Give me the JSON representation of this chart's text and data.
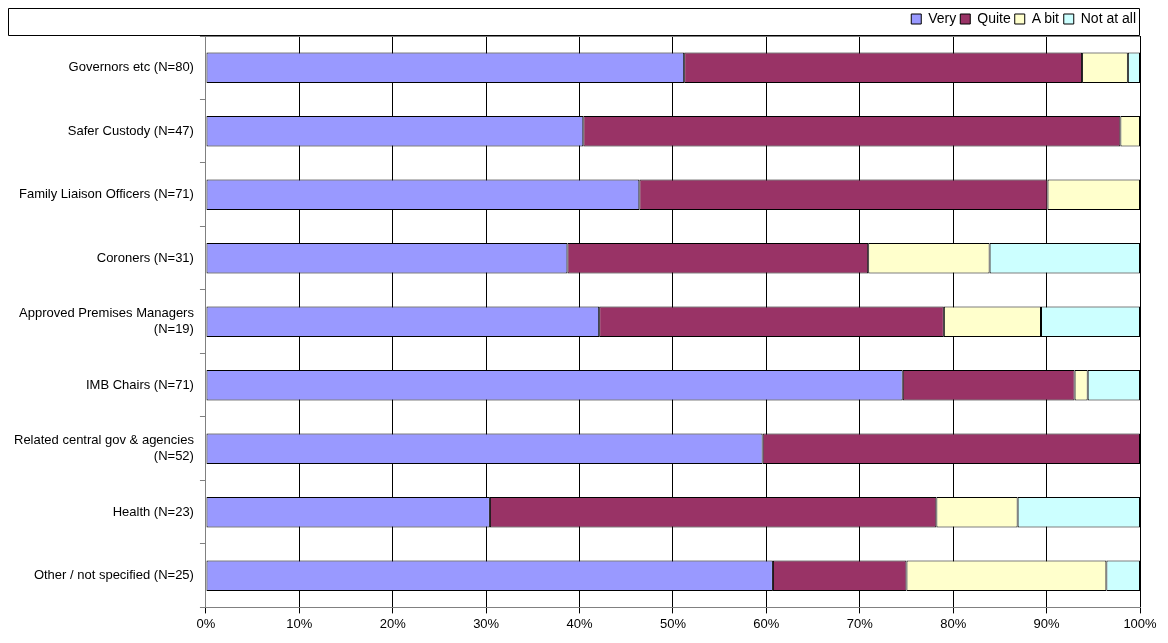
{
  "chart_data": {
    "type": "bar",
    "orientation": "horizontal",
    "stacked": true,
    "categories": [
      "Governors etc (N=80)",
      "Safer Custody (N=47)",
      "Family Liaison Officers (N=71)",
      "Coroners (N=31)",
      "Approved Premises Managers (N=19)",
      "IMB Chairs (N=71)",
      "Related central gov & agencies (N=52)",
      "Health (N=23)",
      "Other / not specified (N=25)"
    ],
    "series": [
      {
        "name": "Very",
        "color": "#9999ff",
        "values": [
          51.2,
          40.4,
          46.4,
          38.7,
          42.1,
          74.6,
          59.6,
          30.4,
          60.7
        ]
      },
      {
        "name": "Quite",
        "color": "#993366",
        "values": [
          42.6,
          57.5,
          43.7,
          32.2,
          36.9,
          18.4,
          40.4,
          47.8,
          14.3
        ]
      },
      {
        "name": "A bit",
        "color": "#ffffcc",
        "values": [
          4.9,
          2.1,
          9.9,
          13.0,
          10.4,
          1.4,
          0,
          8.7,
          21.4
        ]
      },
      {
        "name": "Not at all",
        "color": "#ccffff",
        "values": [
          1.3,
          0,
          0,
          16.1,
          10.6,
          5.6,
          0,
          13.1,
          3.6
        ]
      }
    ],
    "xlim": [
      0,
      100
    ],
    "xticks": [
      {
        "value": 0,
        "label": "0%"
      },
      {
        "value": 10,
        "label": "10%"
      },
      {
        "value": 20,
        "label": "20%"
      },
      {
        "value": 30,
        "label": "30%"
      },
      {
        "value": 40,
        "label": "40%"
      },
      {
        "value": 50,
        "label": "50%"
      },
      {
        "value": 60,
        "label": "60%"
      },
      {
        "value": 70,
        "label": "70%"
      },
      {
        "value": 80,
        "label": "80%"
      },
      {
        "value": 90,
        "label": "90%"
      },
      {
        "value": 100,
        "label": "100%"
      }
    ],
    "grid": "x",
    "legend": "top right"
  }
}
